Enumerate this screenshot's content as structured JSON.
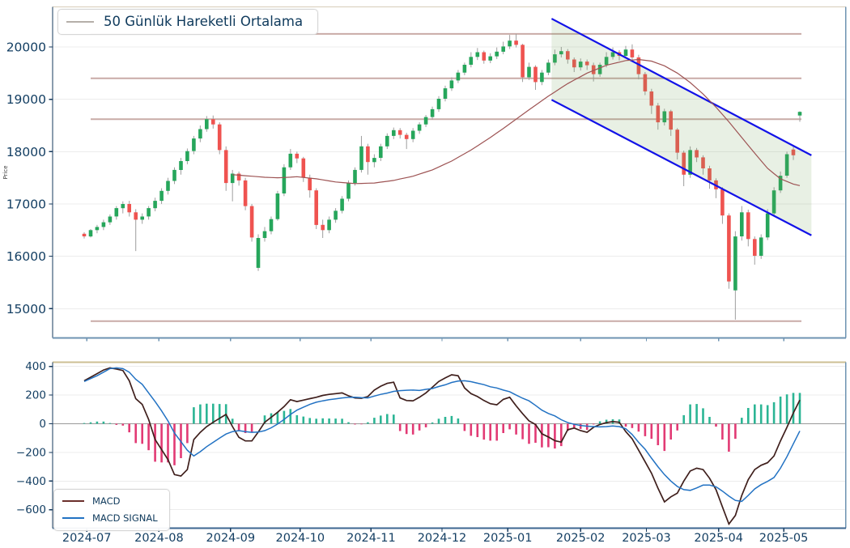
{
  "chart_data": {
    "type": "candlestick",
    "title": "",
    "x_ticks": [
      {
        "label": "2024-07",
        "i": 0.4
      },
      {
        "label": "2024-08",
        "i": 11.6
      },
      {
        "label": "2024-09",
        "i": 22.7
      },
      {
        "label": "2024-10",
        "i": 33.5
      },
      {
        "label": "2024-11",
        "i": 44.5
      },
      {
        "label": "2024-12",
        "i": 55.5
      },
      {
        "label": "2025-01",
        "i": 65.7
      },
      {
        "label": "2025-02",
        "i": 77.0
      },
      {
        "label": "2025-03",
        "i": 87.2
      },
      {
        "label": "2025-04",
        "i": 98.4
      },
      {
        "label": "2025-05",
        "i": 108.5
      }
    ],
    "price": {
      "ylabel": "Price",
      "legend": "50 Günlük Hareketli Ortalama",
      "ylim": [
        14450,
        20770
      ],
      "yticks": [
        {
          "label": "20000",
          "v": 20000
        },
        {
          "label": "19000",
          "v": 19000
        },
        {
          "label": "18000",
          "v": 18000
        },
        {
          "label": "17000",
          "v": 17000
        },
        {
          "label": "16000",
          "v": 16000
        },
        {
          "label": "15000",
          "v": 15000
        }
      ],
      "support_resistance": [
        20250,
        19400,
        18620,
        14760
      ],
      "trend_channel": {
        "i_start": 72.5,
        "i_end": 112.8,
        "upper_start": 20540,
        "upper_end": 17930,
        "lower_start": 18990,
        "lower_end": 16400
      },
      "candles": [
        [
          16430,
          16460,
          16340,
          16380
        ],
        [
          16380,
          16520,
          16360,
          16500
        ],
        [
          16500,
          16600,
          16440,
          16560
        ],
        [
          16560,
          16700,
          16500,
          16650
        ],
        [
          16650,
          16800,
          16600,
          16760
        ],
        [
          16760,
          16960,
          16700,
          16920
        ],
        [
          16920,
          17050,
          16820,
          17000
        ],
        [
          17000,
          17060,
          16760,
          16840
        ],
        [
          16840,
          16900,
          16100,
          16700
        ],
        [
          16700,
          16820,
          16620,
          16760
        ],
        [
          16760,
          16960,
          16700,
          16920
        ],
        [
          16920,
          17120,
          16860,
          17060
        ],
        [
          17060,
          17300,
          17000,
          17250
        ],
        [
          17250,
          17500,
          17180,
          17440
        ],
        [
          17440,
          17700,
          17380,
          17650
        ],
        [
          17650,
          17880,
          17560,
          17820
        ],
        [
          17820,
          18060,
          17760,
          18010
        ],
        [
          18010,
          18300,
          17950,
          18250
        ],
        [
          18250,
          18500,
          18180,
          18430
        ],
        [
          18430,
          18680,
          18380,
          18620
        ],
        [
          18620,
          18690,
          18440,
          18520
        ],
        [
          18520,
          18560,
          17950,
          18030
        ],
        [
          18030,
          18100,
          17250,
          17400
        ],
        [
          17400,
          17650,
          17050,
          17580
        ],
        [
          17580,
          17620,
          17350,
          17450
        ],
        [
          17450,
          17500,
          16880,
          16960
        ],
        [
          16960,
          17000,
          16280,
          16360
        ],
        [
          15780,
          16420,
          15720,
          16350
        ],
        [
          16350,
          16560,
          16280,
          16480
        ],
        [
          16480,
          16760,
          16420,
          16710
        ],
        [
          16710,
          17250,
          16680,
          17200
        ],
        [
          17200,
          17760,
          17150,
          17700
        ],
        [
          17700,
          18050,
          17650,
          17960
        ],
        [
          17960,
          18000,
          17780,
          17870
        ],
        [
          17870,
          17900,
          17420,
          17500
        ],
        [
          17500,
          17560,
          17120,
          17260
        ],
        [
          17260,
          17300,
          16520,
          16600
        ],
        [
          16600,
          16700,
          16350,
          16500
        ],
        [
          16500,
          16760,
          16440,
          16700
        ],
        [
          16700,
          16920,
          16640,
          16870
        ],
        [
          16870,
          17150,
          16820,
          17100
        ],
        [
          17100,
          17450,
          17050,
          17400
        ],
        [
          17400,
          17700,
          17350,
          17650
        ],
        [
          17650,
          18300,
          17600,
          18100
        ],
        [
          18100,
          18150,
          17560,
          17800
        ],
        [
          17800,
          17950,
          17700,
          17880
        ],
        [
          17880,
          18150,
          17820,
          18100
        ],
        [
          18100,
          18350,
          18050,
          18300
        ],
        [
          18300,
          18460,
          18240,
          18410
        ],
        [
          18410,
          18450,
          18250,
          18320
        ],
        [
          18320,
          18360,
          18050,
          18240
        ],
        [
          18240,
          18450,
          18180,
          18400
        ],
        [
          18400,
          18560,
          18340,
          18520
        ],
        [
          18520,
          18700,
          18470,
          18660
        ],
        [
          18660,
          18860,
          18610,
          18810
        ],
        [
          18810,
          19060,
          18760,
          19010
        ],
        [
          19010,
          19260,
          18960,
          19210
        ],
        [
          19210,
          19420,
          19160,
          19360
        ],
        [
          19360,
          19560,
          19310,
          19510
        ],
        [
          19510,
          19700,
          19460,
          19660
        ],
        [
          19660,
          19900,
          19610,
          19810
        ],
        [
          19810,
          19980,
          19750,
          19900
        ],
        [
          19900,
          19930,
          19680,
          19740
        ],
        [
          19740,
          19880,
          19690,
          19820
        ],
        [
          19820,
          19990,
          19770,
          19910
        ],
        [
          19910,
          20100,
          19860,
          20010
        ],
        [
          20010,
          20230,
          19960,
          20120
        ],
        [
          20120,
          20250,
          19990,
          20040
        ],
        [
          20040,
          20060,
          19330,
          19420
        ],
        [
          19420,
          19700,
          19370,
          19620
        ],
        [
          19620,
          19650,
          19180,
          19330
        ],
        [
          19330,
          19560,
          19270,
          19510
        ],
        [
          19510,
          19760,
          19460,
          19700
        ],
        [
          19700,
          19950,
          19650,
          19860
        ],
        [
          19860,
          20000,
          19800,
          19920
        ],
        [
          19920,
          19960,
          19680,
          19760
        ],
        [
          19760,
          19800,
          19520,
          19610
        ],
        [
          19610,
          19780,
          19550,
          19720
        ],
        [
          19720,
          19760,
          19560,
          19650
        ],
        [
          19650,
          19700,
          19340,
          19480
        ],
        [
          19480,
          19700,
          19430,
          19660
        ],
        [
          19660,
          19900,
          19610,
          19810
        ],
        [
          19810,
          19990,
          19760,
          19900
        ],
        [
          19900,
          19940,
          19740,
          19830
        ],
        [
          19830,
          20020,
          19780,
          19950
        ],
        [
          19950,
          20050,
          19740,
          19800
        ],
        [
          19800,
          19850,
          19380,
          19480
        ],
        [
          19480,
          19520,
          19080,
          19150
        ],
        [
          19150,
          19200,
          18720,
          18880
        ],
        [
          18880,
          18930,
          18420,
          18560
        ],
        [
          18560,
          18820,
          18500,
          18770
        ],
        [
          18770,
          18800,
          18300,
          18420
        ],
        [
          18420,
          18450,
          17850,
          17980
        ],
        [
          17980,
          18020,
          17340,
          17560
        ],
        [
          17560,
          18100,
          17500,
          18030
        ],
        [
          18030,
          18070,
          17800,
          17890
        ],
        [
          17890,
          17930,
          17560,
          17680
        ],
        [
          17680,
          17730,
          17290,
          17450
        ],
        [
          17450,
          17490,
          17110,
          17280
        ],
        [
          17280,
          17320,
          16620,
          16780
        ],
        [
          16780,
          16820,
          15380,
          15520
        ],
        [
          15350,
          16480,
          14790,
          16380
        ],
        [
          16380,
          16960,
          16300,
          16840
        ],
        [
          16840,
          16890,
          16190,
          16330
        ],
        [
          16330,
          16380,
          15840,
          16010
        ],
        [
          16010,
          16420,
          15950,
          16360
        ],
        [
          16360,
          16900,
          16310,
          16820
        ],
        [
          16820,
          17320,
          16780,
          17260
        ],
        [
          17260,
          17620,
          17210,
          17540
        ],
        [
          17540,
          18000,
          17500,
          17950
        ],
        [
          18040,
          18090,
          17840,
          17930
        ],
        [
          18690,
          18770,
          18570,
          18760
        ]
      ],
      "ma50": [
        null,
        null,
        null,
        null,
        null,
        null,
        null,
        null,
        null,
        null,
        null,
        null,
        null,
        null,
        null,
        null,
        null,
        null,
        null,
        null,
        null,
        null,
        null,
        17560,
        17550,
        17540,
        17530,
        17520,
        17510,
        17505,
        17500,
        17505,
        17512,
        17520,
        17507,
        17493,
        17480,
        17460,
        17440,
        17420,
        17410,
        17400,
        17390,
        17393,
        17397,
        17400,
        17417,
        17433,
        17450,
        17477,
        17503,
        17530,
        17570,
        17610,
        17650,
        17707,
        17763,
        17820,
        17890,
        17960,
        18030,
        18110,
        18190,
        18270,
        18357,
        18443,
        18530,
        18620,
        18710,
        18800,
        18887,
        18973,
        19060,
        19140,
        19220,
        19300,
        19367,
        19433,
        19500,
        19550,
        19600,
        19650,
        19680,
        19710,
        19740,
        19750,
        19760,
        19745,
        19730,
        19685,
        19640,
        19570,
        19500,
        19410,
        19320,
        19210,
        19100,
        18975,
        18850,
        18710,
        18570,
        18420,
        18270,
        18120,
        17970,
        17825,
        17680,
        17580,
        17480,
        17430,
        17380,
        17350
      ]
    },
    "macd": {
      "legend": [
        "MACD",
        "MACD SIGNAL"
      ],
      "ylim": [
        -737,
        432
      ],
      "yticks": [
        {
          "label": "400",
          "v": 400
        },
        {
          "label": "200",
          "v": 200
        },
        {
          "label": "0",
          "v": 0
        },
        {
          "label": "−200",
          "v": -200
        },
        {
          "label": "−400",
          "v": -400
        },
        {
          "label": "−600",
          "v": -600
        }
      ],
      "macd": [
        300,
        325,
        350,
        375,
        390,
        382,
        372,
        300,
        175,
        135,
        30,
        -110,
        -180,
        -250,
        -355,
        -365,
        -320,
        -110,
        -60,
        -20,
        10,
        38,
        65,
        -20,
        -95,
        -120,
        -120,
        -58,
        10,
        45,
        80,
        120,
        168,
        155,
        165,
        175,
        185,
        198,
        205,
        210,
        215,
        195,
        180,
        178,
        190,
        235,
        262,
        282,
        290,
        180,
        162,
        160,
        185,
        215,
        255,
        295,
        320,
        342,
        335,
        250,
        210,
        190,
        162,
        140,
        132,
        170,
        185,
        125,
        70,
        20,
        -5,
        -70,
        -92,
        -118,
        -128,
        -42,
        -30,
        -48,
        -60,
        -25,
        -5,
        8,
        15,
        10,
        -55,
        -105,
        -185,
        -265,
        -345,
        -450,
        -545,
        -510,
        -485,
        -400,
        -330,
        -310,
        -320,
        -380,
        -460,
        -580,
        -700,
        -640,
        -500,
        -390,
        -320,
        -290,
        -272,
        -225,
        -120,
        -25,
        75,
        165
      ],
      "signal": [
        295,
        315,
        335,
        360,
        385,
        390,
        385,
        360,
        310,
        275,
        215,
        155,
        90,
        20,
        -65,
        -125,
        -185,
        -225,
        -195,
        -160,
        -130,
        -100,
        -72,
        -55,
        -48,
        -55,
        -60,
        -58,
        -48,
        -28,
        -2,
        30,
        65,
        95,
        115,
        135,
        150,
        160,
        168,
        174,
        180,
        184,
        185,
        182,
        180,
        193,
        205,
        214,
        226,
        231,
        234,
        235,
        232,
        240,
        246,
        260,
        272,
        288,
        298,
        300,
        294,
        283,
        273,
        258,
        250,
        235,
        224,
        200,
        178,
        160,
        128,
        95,
        72,
        55,
        28,
        8,
        -4,
        -12,
        -17,
        -20,
        -22,
        -20,
        -16,
        -20,
        -35,
        -75,
        -130,
        -178,
        -240,
        -300,
        -355,
        -400,
        -438,
        -460,
        -465,
        -448,
        -428,
        -428,
        -440,
        -470,
        -505,
        -535,
        -542,
        -500,
        -455,
        -425,
        -402,
        -375,
        -310,
        -230,
        -140,
        -50
      ]
    }
  },
  "colors": {
    "candle_up": "#26a65b",
    "candle_down": "#ef5350",
    "wick": "#9e9e9e",
    "ma50": "#9d5353",
    "sr_line": "#c9aba7",
    "channel_line": "#1212e8",
    "channel_fill": "#6ea05a",
    "macd_line": "#3f1f1c",
    "signal_line": "#2272c3",
    "hist_up": "#2bb594",
    "hist_down": "#e23a74",
    "grid": "#ececec",
    "zero_line": "#999999",
    "axis_navy": "#16395c",
    "spine_steel": "#6e93b2",
    "spine_tan_top": "#d8cdb9",
    "spine_tan_macd": "#cdbf93",
    "spine_macd_bottom": "#3c6690",
    "tick_label": "#143f63",
    "legend_text": "#0f3a5c",
    "legend_swatch_ma": "#b5afa9"
  }
}
